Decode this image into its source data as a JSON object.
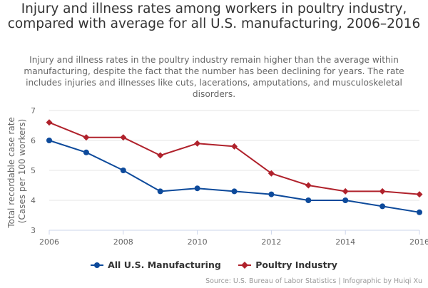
{
  "chart_data": {
    "type": "line",
    "title": "Injury and illness rates among workers in poultry industry, compared with average for all U.S. manufacturing, 2006–2016",
    "subtitle": "Injury and illness rates in the poultry industry remain higher than the average within manufacturing, despite the fact that the number has been declining for years. The rate includes injuries and illnesses like cuts, lacerations, amputations, and musculoskeletal disorders.",
    "ylabel": "Total recordable case rate (Cases per 100 workers)",
    "xlabel": "",
    "x": [
      2006,
      2007,
      2008,
      2009,
      2010,
      2011,
      2012,
      2013,
      2014,
      2015,
      2016
    ],
    "xticks": [
      "2006",
      "2008",
      "2010",
      "2012",
      "2014",
      "2016"
    ],
    "yticks": [
      "3",
      "4",
      "5",
      "6",
      "7"
    ],
    "xlim": [
      2006,
      2016
    ],
    "ylim": [
      3,
      7
    ],
    "grid": "horizontal",
    "legend": "bottom",
    "series": [
      {
        "name": "All U.S. Manufacturing",
        "color": "#0d4a9b",
        "marker": "circle",
        "values": [
          6.0,
          5.6,
          5.0,
          4.3,
          4.4,
          4.3,
          4.2,
          4.0,
          4.0,
          3.8,
          3.6
        ]
      },
      {
        "name": "Poultry Industry",
        "color": "#b0222c",
        "marker": "diamond",
        "values": [
          6.6,
          6.1,
          6.1,
          5.5,
          5.9,
          5.8,
          4.9,
          4.5,
          4.3,
          4.3,
          4.2
        ]
      }
    ],
    "credits": "Source: U.S. Bureau of Labor Statistics | Infographic by Huiqi Xu"
  }
}
